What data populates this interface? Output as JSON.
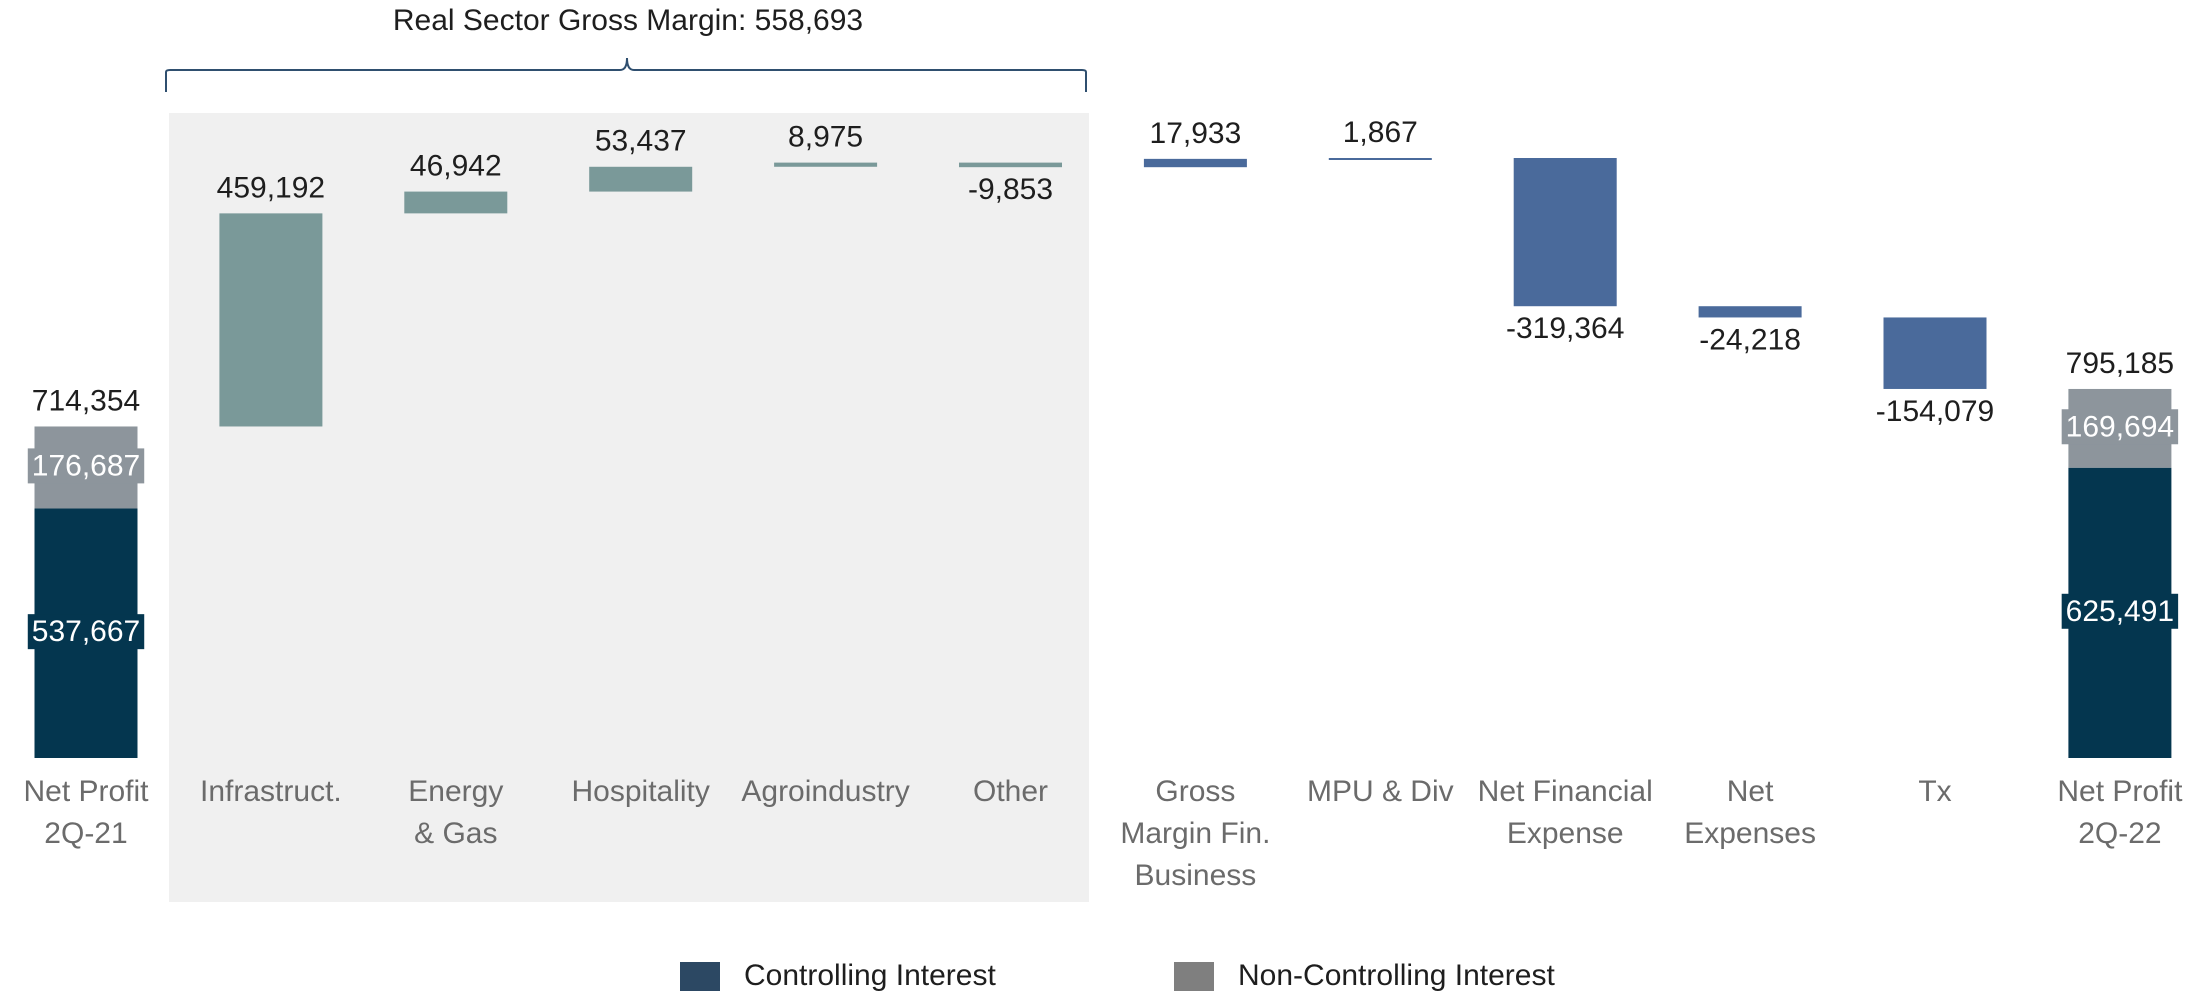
{
  "chart_data": {
    "type": "waterfall",
    "annotation": "Real Sector Gross Margin: 558,693",
    "categories": [
      [
        "Net Profit",
        "2Q-21"
      ],
      [
        "Infrastruct."
      ],
      [
        "Energy",
        "& Gas"
      ],
      [
        "Hospitality"
      ],
      [
        "Agroindustry"
      ],
      [
        "Other"
      ],
      [
        "Gross",
        "Margin Fin.",
        "Business"
      ],
      [
        "MPU & Div"
      ],
      [
        "Net Financial",
        "Expense"
      ],
      [
        "Net",
        "Expenses"
      ],
      [
        "Tx"
      ],
      [
        "Net Profit",
        "2Q-22"
      ]
    ],
    "values": [
      null,
      459192,
      46942,
      53437,
      8975,
      -9853,
      17933,
      1867,
      -319364,
      -24218,
      -154079,
      null
    ],
    "value_labels": [
      null,
      "459,192",
      "46,942",
      "53,437",
      "8,975",
      "-9,853",
      "17,933",
      "1,867",
      "-319,364",
      "-24,218",
      "-154,079",
      null
    ],
    "colors": [
      null,
      "#7a9999",
      "#7a9999",
      "#7a9999",
      "#7a9999",
      "#7a9999",
      "#4a6a9b",
      "#4a6a9b",
      "#4a6a9b",
      "#4a6a9b",
      "#4a6a9b",
      null
    ],
    "totals": [
      714354,
      null,
      null,
      null,
      null,
      null,
      null,
      null,
      null,
      null,
      null,
      795185
    ],
    "total_labels": [
      "714,354",
      null,
      null,
      null,
      null,
      null,
      null,
      null,
      null,
      null,
      null,
      "795,185"
    ],
    "series": [
      {
        "name": "Controlling Interest",
        "color": "#04364f",
        "legend_color": "#2c4863",
        "values": [
          537667,
          null,
          null,
          null,
          null,
          null,
          null,
          null,
          null,
          null,
          null,
          625491
        ],
        "value_labels": [
          "537,667",
          null,
          null,
          null,
          null,
          null,
          null,
          null,
          null,
          null,
          null,
          "625,491"
        ]
      },
      {
        "name": "Non-Controlling Interest",
        "color": "#8d959c",
        "legend_color": "#7f7f7f",
        "values": [
          176687,
          null,
          null,
          null,
          null,
          null,
          null,
          null,
          null,
          null,
          null,
          169694
        ],
        "value_labels": [
          "176,687",
          null,
          null,
          null,
          null,
          null,
          null,
          null,
          null,
          null,
          null,
          "169,694"
        ]
      }
    ]
  }
}
